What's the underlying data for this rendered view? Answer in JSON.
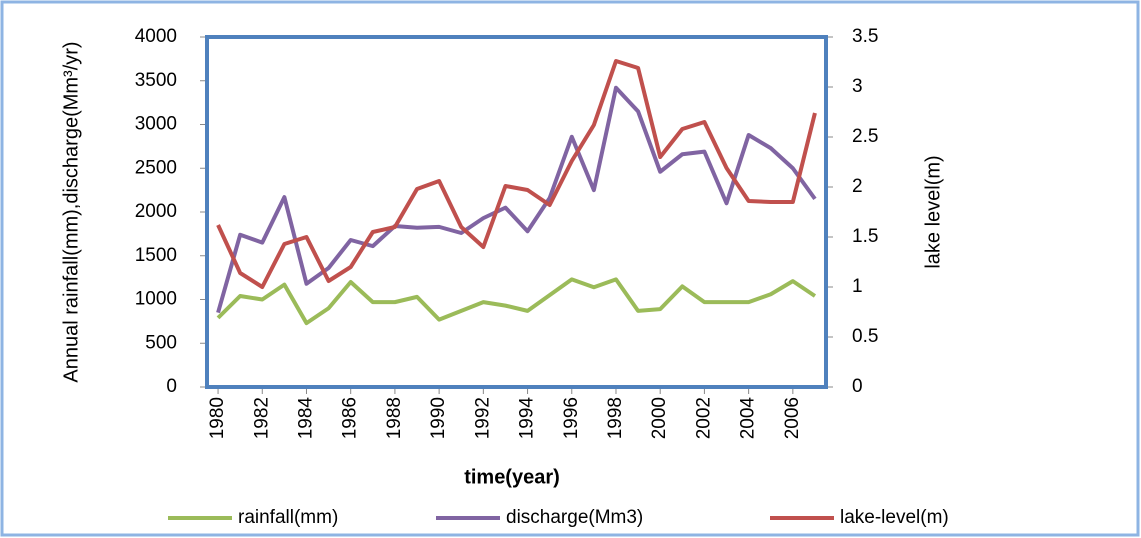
{
  "chart_data": {
    "type": "line",
    "x_label": "time(year)",
    "y_label": "Annual rainfall(mm),discharge(Mm³/yr)",
    "y2_label": "lake level(m)",
    "x": [
      1980,
      1981,
      1982,
      1983,
      1984,
      1985,
      1986,
      1987,
      1988,
      1989,
      1990,
      1991,
      1992,
      1993,
      1994,
      1995,
      1996,
      1997,
      1998,
      1999,
      2000,
      2001,
      2002,
      2003,
      2004,
      2005,
      2006,
      2007
    ],
    "xlim": [
      1979.5,
      2007.5
    ],
    "xticks": [
      1980,
      1982,
      1984,
      1986,
      1988,
      1990,
      1992,
      1994,
      1996,
      1998,
      2000,
      2002,
      2004,
      2006
    ],
    "ylim": [
      0,
      4000
    ],
    "yticks": [
      0,
      500,
      1000,
      1500,
      2000,
      2500,
      3000,
      3500,
      4000
    ],
    "y2lim": [
      0,
      3.5
    ],
    "y2ticks": [
      0,
      0.5,
      1,
      1.5,
      2,
      2.5,
      3,
      3.5
    ],
    "series": [
      {
        "name": "rainfall(mm)",
        "color": "#9bbb59",
        "values": [
          790,
          1040,
          1000,
          1170,
          730,
          900,
          1200,
          970,
          970,
          1030,
          770,
          870,
          970,
          930,
          870,
          1050,
          1230,
          1140,
          1230,
          870,
          890,
          1150,
          970,
          970,
          970,
          1060,
          1210,
          1040
        ]
      },
      {
        "name": "discharge(Mm3)",
        "color": "#8064a2",
        "values": [
          850,
          1740,
          1650,
          2170,
          1180,
          1360,
          1680,
          1610,
          1840,
          1820,
          1830,
          1760,
          1930,
          2050,
          1780,
          2160,
          2860,
          2250,
          3420,
          3150,
          2460,
          2660,
          2690,
          2100,
          2880,
          2730,
          2500,
          2150
        ]
      },
      {
        "name": "lake-level(m)",
        "color": "#c0504d",
        "axis": "y2",
        "values": [
          1.62,
          1.14,
          1.0,
          1.43,
          1.5,
          1.06,
          1.2,
          1.55,
          1.6,
          1.98,
          2.06,
          1.6,
          1.4,
          2.01,
          1.97,
          1.82,
          2.26,
          2.62,
          3.26,
          3.19,
          2.3,
          2.58,
          2.65,
          2.19,
          1.86,
          1.85,
          1.85,
          2.74
        ]
      }
    ]
  }
}
